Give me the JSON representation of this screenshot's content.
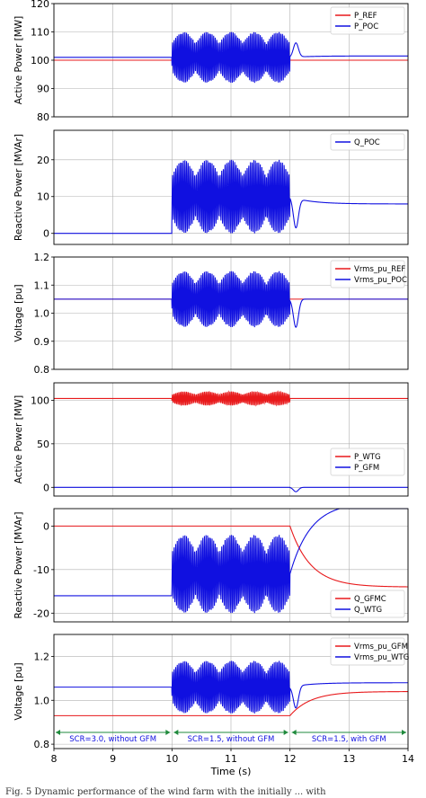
{
  "colors": {
    "red": "#e8191b",
    "blue": "#1010e0",
    "green": "#1f8a3c",
    "grid": "#b0b0b0"
  },
  "x_axis": {
    "label": "Time (s)",
    "range": [
      8,
      14
    ],
    "ticks": [
      "8",
      "9",
      "10",
      "11",
      "12",
      "13",
      "14"
    ]
  },
  "annotations": [
    {
      "text": "SCR=3.0, without GFM",
      "from": 8,
      "to": 10
    },
    {
      "text": "SCR=1.5, without GFM",
      "from": 10,
      "to": 12
    },
    {
      "text": "SCR=1.5, with GFM",
      "from": 12,
      "to": 14
    }
  ],
  "caption": "Fig. 5 Dynamic performance of the wind farm with the initially ... with",
  "chart_data": [
    {
      "type": "line",
      "ylabel": "Active Power [MW]",
      "ylim": [
        80,
        120
      ],
      "yticks": [
        "80",
        "90",
        "100",
        "110",
        "120"
      ],
      "grid": true,
      "legend": "top-right",
      "series": [
        {
          "name": "P_REF",
          "color": "red",
          "pre": 100,
          "osc_center": 100,
          "osc_amp": 0,
          "post": 100,
          "dip": 0
        },
        {
          "name": "P_POC",
          "color": "blue",
          "pre": 101,
          "osc_center": 101,
          "osc_amp": 9,
          "post": 101.5,
          "dip": 5
        }
      ]
    },
    {
      "type": "line",
      "ylabel": "Reactive Power [MVAr]",
      "ylim": [
        -3,
        28
      ],
      "yticks": [
        "0",
        "10",
        "20"
      ],
      "grid": true,
      "legend": "top-right",
      "series": [
        {
          "name": "Q_POC",
          "color": "blue",
          "pre": 0,
          "osc_center": 10,
          "osc_amp": 10,
          "post": 8,
          "dip": -8
        }
      ]
    },
    {
      "type": "line",
      "ylabel": "Voltage [pu]",
      "ylim": [
        0.8,
        1.2
      ],
      "yticks": [
        "0.8",
        "0.9",
        "1.0",
        "1.1",
        "1.2"
      ],
      "grid": true,
      "legend": "top-right",
      "series": [
        {
          "name": "Vrms_pu_REF",
          "color": "red",
          "pre": 1.05,
          "osc_center": 1.05,
          "osc_amp": 0,
          "post": 1.05,
          "dip": 0
        },
        {
          "name": "Vrms_pu_POC",
          "color": "blue",
          "pre": 1.05,
          "osc_center": 1.05,
          "osc_amp": 0.1,
          "post": 1.05,
          "dip": -0.1
        }
      ]
    },
    {
      "type": "line",
      "ylabel": "Active Power [MW]",
      "ylim": [
        -10,
        120
      ],
      "yticks": [
        "0",
        "50",
        "100"
      ],
      "grid": true,
      "legend": "center-right",
      "series": [
        {
          "name": "P_WTG",
          "color": "red",
          "pre": 102,
          "osc_center": 102,
          "osc_amp": 8,
          "post": 102,
          "dip": 0
        },
        {
          "name": "P_GFM",
          "color": "blue",
          "pre": 0,
          "osc_center": 0,
          "osc_amp": 0,
          "post": 0,
          "dip": -5
        }
      ]
    },
    {
      "type": "line",
      "ylabel": "Reactive Power [MVAr]",
      "ylim": [
        -22,
        4
      ],
      "yticks": [
        "-20",
        "-10",
        "0"
      ],
      "grid": true,
      "legend": "bottom-right",
      "series": [
        {
          "name": "Q_GFMC",
          "color": "red",
          "pre": 0,
          "osc_center": 0,
          "osc_amp": 0,
          "post": -14,
          "dip": 0
        },
        {
          "name": "Q_WTG",
          "color": "blue",
          "pre": -16,
          "osc_center": -11,
          "osc_amp": 9,
          "post": 5.5,
          "dip": 0
        }
      ]
    },
    {
      "type": "line",
      "ylabel": "Voltage [pu]",
      "ylim": [
        0.78,
        1.3
      ],
      "yticks": [
        "0.8",
        "1.0",
        "1.2"
      ],
      "grid": true,
      "legend": "top-right",
      "series": [
        {
          "name": "Vrms_pu_GFM",
          "color": "red",
          "pre": 0.93,
          "osc_center": 0.93,
          "osc_amp": 0,
          "post": 1.04,
          "dip": 0
        },
        {
          "name": "Vrms_pu_WTG",
          "color": "blue",
          "pre": 1.06,
          "osc_center": 1.06,
          "osc_amp": 0.12,
          "post": 1.08,
          "dip": -0.1
        }
      ]
    }
  ]
}
